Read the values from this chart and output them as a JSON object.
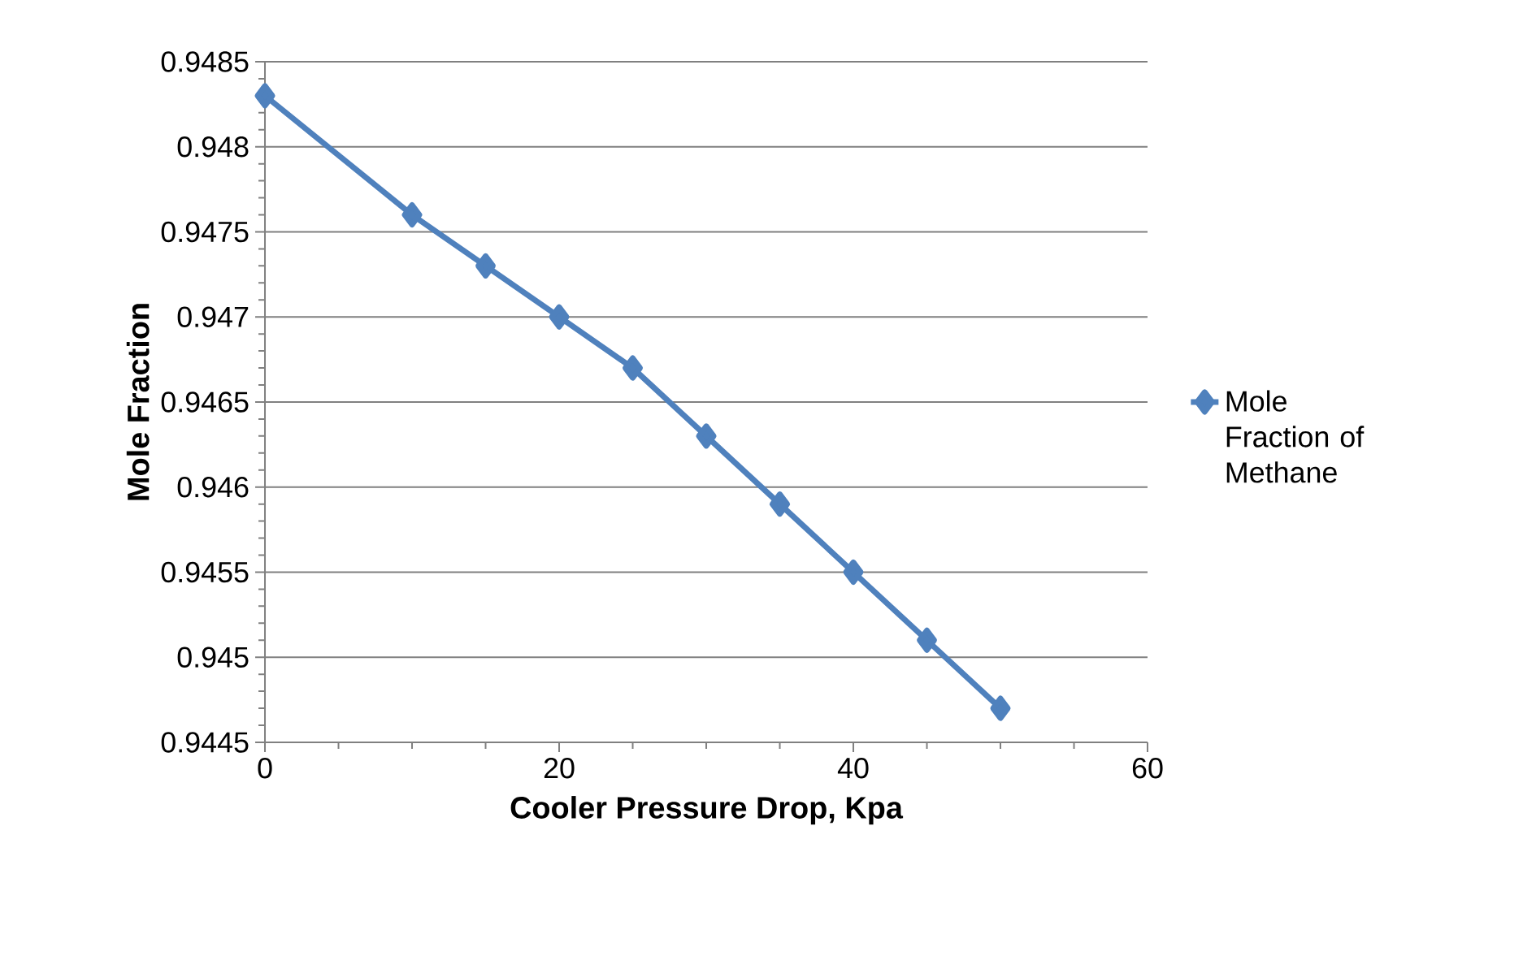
{
  "chart_data": {
    "type": "line",
    "xlabel": "Cooler Pressure Drop, Kpa",
    "ylabel": "Mole Fraction",
    "x": [
      0,
      10,
      15,
      20,
      25,
      30,
      35,
      40,
      45,
      50
    ],
    "series": [
      {
        "name": "Mole Fraction of Methane",
        "color": "#4f81bd",
        "values": [
          0.9483,
          0.9476,
          0.9473,
          0.947,
          0.9467,
          0.9463,
          0.9459,
          0.9455,
          0.9451,
          0.9447
        ]
      }
    ],
    "xlim": [
      0,
      60
    ],
    "xticks": [
      0,
      20,
      40,
      60
    ],
    "ylim": [
      0.9445,
      0.9485
    ],
    "yticks": [
      0.9445,
      0.945,
      0.9455,
      0.946,
      0.9465,
      0.947,
      0.9475,
      0.948,
      0.9485
    ],
    "grid": "y",
    "legend": "right",
    "marker": "diamond",
    "line_style": "solid"
  }
}
